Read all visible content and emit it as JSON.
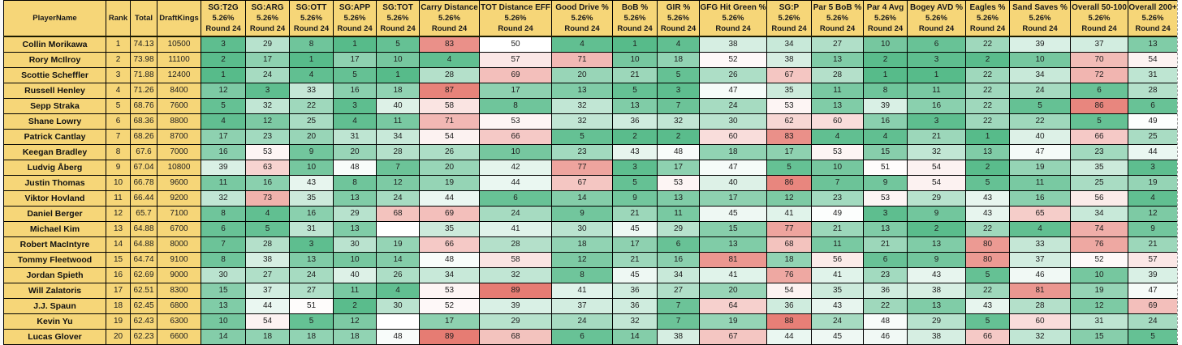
{
  "sheet": {
    "id_columns": [
      "PlayerName",
      "Rank",
      "Total",
      "DraftKings"
    ],
    "stat_sub1": "5.26%",
    "stat_sub2": "Round 24",
    "stat_columns": [
      "SG:T2G",
      "SG:ARG",
      "SG:OTT",
      "SG:APP",
      "SG:TOT",
      "Carry Distance",
      "TOT Distance EFF",
      "Good Drive %",
      "BoB %",
      "GIR %",
      "GFG Hit Green %",
      "SG:P",
      "Par 5 BoB %",
      "Par 4 Avg",
      "Bogey AVD %",
      "Eagles %",
      "Sand Saves %",
      "Overall 50-100",
      "Overall 200+"
    ],
    "rows": [
      {
        "player": "Collin Morikawa",
        "rank": "1",
        "total": "74.13",
        "draftkings": "10500",
        "stats": [
          3,
          29,
          8,
          1,
          5,
          83,
          50,
          4,
          1,
          4,
          38,
          34,
          27,
          10,
          6,
          22,
          39,
          37,
          13
        ]
      },
      {
        "player": "Rory McIlroy",
        "rank": "2",
        "total": "73.98",
        "draftkings": "11100",
        "stats": [
          2,
          17,
          1,
          17,
          10,
          4,
          57,
          71,
          10,
          18,
          52,
          38,
          13,
          2,
          3,
          2,
          10,
          70,
          54
        ]
      },
      {
        "player": "Scottie Scheffler",
        "rank": "3",
        "total": "71.88",
        "draftkings": "12400",
        "stats": [
          1,
          24,
          4,
          5,
          1,
          28,
          69,
          20,
          21,
          5,
          26,
          67,
          28,
          1,
          1,
          22,
          34,
          72,
          31
        ]
      },
      {
        "player": "Russell Henley",
        "rank": "4",
        "total": "71.26",
        "draftkings": "8400",
        "stats": [
          12,
          3,
          33,
          16,
          18,
          87,
          17,
          13,
          5,
          3,
          47,
          35,
          11,
          8,
          11,
          22,
          24,
          6,
          28
        ]
      },
      {
        "player": "Sepp Straka",
        "rank": "5",
        "total": "68.76",
        "draftkings": "7600",
        "stats": [
          5,
          32,
          22,
          3,
          40,
          58,
          8,
          32,
          13,
          7,
          24,
          53,
          13,
          39,
          16,
          22,
          5,
          86,
          6
        ]
      },
      {
        "player": "Shane Lowry",
        "rank": "6",
        "total": "68.36",
        "draftkings": "8800",
        "stats": [
          4,
          12,
          25,
          4,
          11,
          71,
          53,
          32,
          36,
          32,
          30,
          62,
          60,
          16,
          3,
          22,
          22,
          5,
          49
        ]
      },
      {
        "player": "Patrick Cantlay",
        "rank": "7",
        "total": "68.26",
        "draftkings": "8700",
        "stats": [
          17,
          23,
          20,
          31,
          34,
          54,
          66,
          5,
          2,
          2,
          60,
          83,
          4,
          4,
          21,
          1,
          40,
          66,
          25
        ]
      },
      {
        "player": "Keegan Bradley",
        "rank": "8",
        "total": "67.6",
        "draftkings": "7000",
        "stats": [
          16,
          53,
          9,
          20,
          28,
          26,
          10,
          23,
          43,
          48,
          18,
          17,
          53,
          15,
          32,
          13,
          47,
          23,
          44
        ]
      },
      {
        "player": "Ludvig Åberg",
        "rank": "9",
        "total": "67.04",
        "draftkings": "10800",
        "stats": [
          39,
          63,
          10,
          48,
          7,
          20,
          42,
          77,
          3,
          17,
          47,
          5,
          10,
          51,
          54,
          2,
          19,
          35,
          3
        ]
      },
      {
        "player": "Justin Thomas",
        "rank": "10",
        "total": "66.78",
        "draftkings": "9600",
        "stats": [
          11,
          16,
          43,
          8,
          12,
          19,
          44,
          67,
          5,
          53,
          40,
          86,
          7,
          9,
          54,
          5,
          11,
          25,
          19
        ]
      },
      {
        "player": "Viktor Hovland",
        "rank": "11",
        "total": "66.44",
        "draftkings": "9200",
        "stats": [
          32,
          73,
          35,
          13,
          24,
          44,
          6,
          14,
          9,
          13,
          17,
          12,
          23,
          53,
          29,
          43,
          16,
          56,
          4
        ]
      },
      {
        "player": "Daniel Berger",
        "rank": "12",
        "total": "65.7",
        "draftkings": "7100",
        "stats": [
          8,
          4,
          16,
          29,
          68,
          69,
          24,
          9,
          21,
          11,
          45,
          41,
          49,
          3,
          9,
          43,
          65,
          34,
          12
        ]
      },
      {
        "player": "Michael Kim",
        "rank": "13",
        "total": "64.88",
        "draftkings": "6700",
        "stats": [
          6,
          5,
          31,
          13,
          null,
          35,
          41,
          30,
          45,
          29,
          15,
          77,
          21,
          13,
          2,
          22,
          4,
          74,
          9
        ]
      },
      {
        "player": "Robert MacIntyre",
        "rank": "14",
        "total": "64.88",
        "draftkings": "8000",
        "stats": [
          7,
          28,
          3,
          30,
          19,
          66,
          28,
          18,
          17,
          6,
          13,
          68,
          11,
          21,
          13,
          80,
          33,
          76,
          21
        ]
      },
      {
        "player": "Tommy Fleetwood",
        "rank": "15",
        "total": "64.74",
        "draftkings": "9100",
        "stats": [
          8,
          38,
          13,
          10,
          14,
          48,
          58,
          12,
          21,
          16,
          81,
          18,
          56,
          6,
          9,
          80,
          37,
          52,
          57
        ]
      },
      {
        "player": "Jordan Spieth",
        "rank": "16",
        "total": "62.69",
        "draftkings": "9000",
        "stats": [
          30,
          27,
          24,
          40,
          26,
          34,
          32,
          8,
          45,
          34,
          41,
          76,
          41,
          23,
          43,
          5,
          46,
          10,
          39
        ]
      },
      {
        "player": "Will Zalatoris",
        "rank": "17",
        "total": "62.51",
        "draftkings": "8300",
        "stats": [
          15,
          37,
          27,
          11,
          4,
          53,
          89,
          41,
          36,
          27,
          20,
          54,
          35,
          36,
          38,
          22,
          81,
          19,
          47
        ]
      },
      {
        "player": "J.J. Spaun",
        "rank": "18",
        "total": "62.45",
        "draftkings": "6800",
        "stats": [
          13,
          44,
          51,
          2,
          30,
          52,
          39,
          37,
          36,
          7,
          64,
          36,
          43,
          22,
          13,
          43,
          28,
          12,
          69
        ]
      },
      {
        "player": "Kevin Yu",
        "rank": "19",
        "total": "62.43",
        "draftkings": "6300",
        "stats": [
          10,
          54,
          5,
          12,
          null,
          17,
          29,
          24,
          32,
          7,
          19,
          88,
          24,
          48,
          29,
          5,
          60,
          31,
          24
        ]
      },
      {
        "player": "Lucas Glover",
        "rank": "20",
        "total": "62.23",
        "draftkings": "6600",
        "stats": [
          14,
          18,
          18,
          18,
          48,
          89,
          68,
          6,
          14,
          38,
          67,
          44,
          45,
          46,
          38,
          66,
          32,
          15,
          5
        ]
      }
    ],
    "colors": {
      "header_bg": "#F6D678",
      "scale_green": "#57BB8A",
      "scale_mid": "#FFFFFF",
      "scale_red": "#E67C73",
      "grid": "#000000"
    },
    "color_scale": {
      "min": 1,
      "mid": 50,
      "max": 89
    }
  }
}
